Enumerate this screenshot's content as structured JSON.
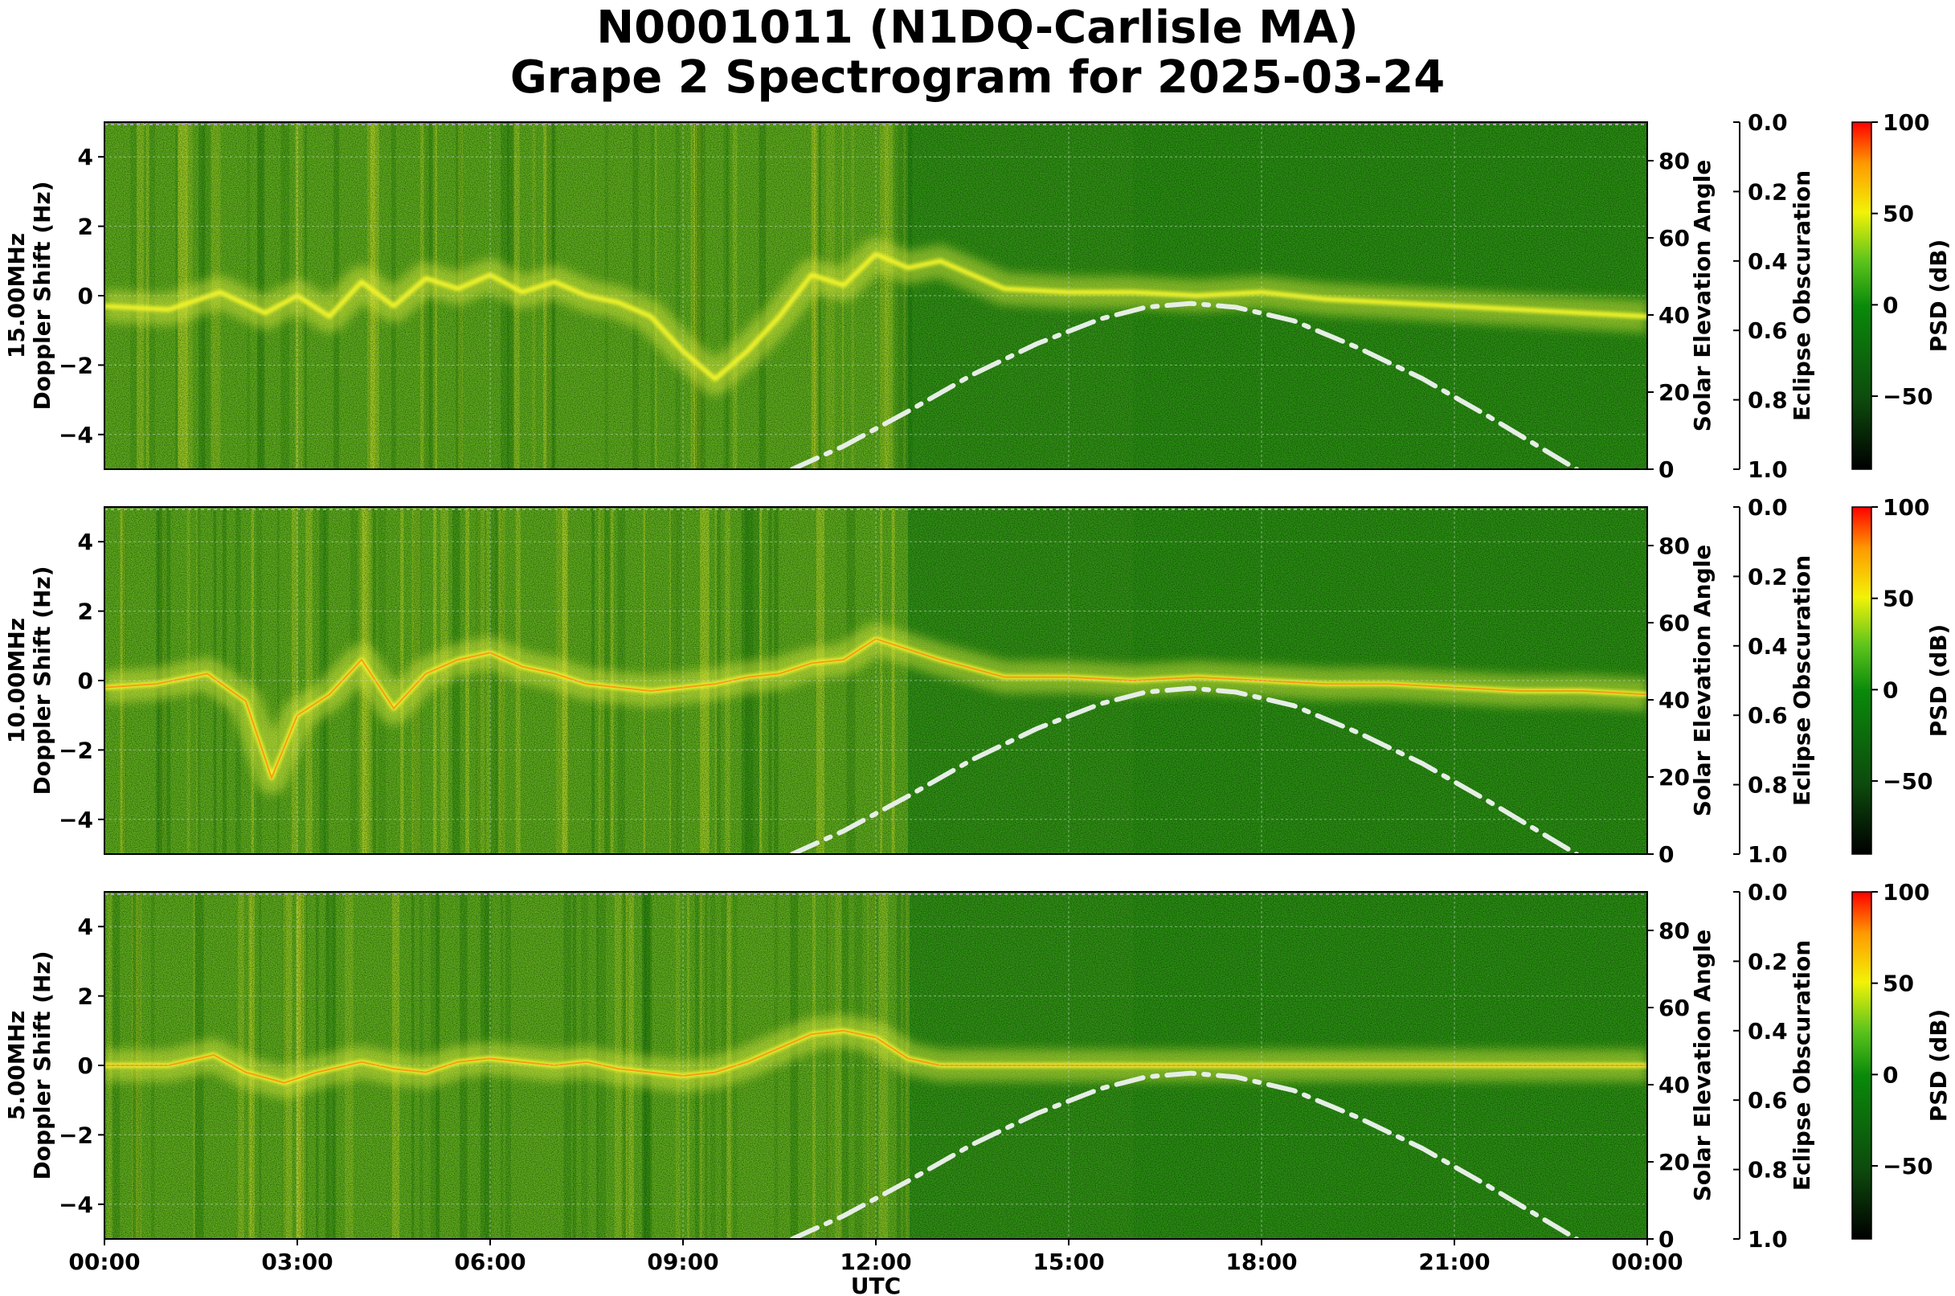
{
  "title_line1": "N0001011 (N1DQ-Carlisle MA)",
  "title_line2": "Grape 2 Spectrogram for 2025-03-24",
  "x_axis_label": "UTC",
  "x_ticks": [
    "00:00",
    "03:00",
    "06:00",
    "09:00",
    "12:00",
    "15:00",
    "18:00",
    "21:00",
    "00:00"
  ],
  "right_axis_label": "Solar Elevation Angle",
  "eclipse_axis_label": "Eclipse Obscuration",
  "colorbar_label": "PSD (dB)",
  "chart_data": [
    {
      "type": "heatmap",
      "panel_label": "15.00MHz",
      "ylabel": "Doppler Shift (Hz)",
      "ylim": [
        -5,
        5
      ],
      "y_ticks": [
        4,
        2,
        0,
        -2,
        -4
      ],
      "right_ylabel": "Solar Elevation Angle",
      "right_ylim": [
        0,
        90
      ],
      "right_ticks": [
        80,
        60,
        40,
        20,
        0
      ],
      "eclipse_ylim": [
        0.0,
        1.0
      ],
      "eclipse_ticks": [
        "0.0",
        "0.2",
        "0.4",
        "0.6",
        "0.8",
        "1.0"
      ],
      "colorbar_range": [
        -90,
        100
      ],
      "colorbar_ticks": [
        100,
        50,
        0,
        -50
      ],
      "x_range_hours": [
        0,
        24
      ],
      "solar_elevation": {
        "x": [
          10.7,
          11.5,
          12.5,
          13.5,
          14.5,
          15.5,
          16.2,
          16.9,
          17.6,
          18.5,
          19.5,
          20.5,
          21.5,
          22.5,
          22.9
        ],
        "y": [
          0,
          6,
          15,
          24.5,
          32.5,
          39,
          42,
          43,
          42,
          38.5,
          31.5,
          23.5,
          14,
          4,
          0
        ]
      },
      "doppler_trace": {
        "x": [
          0,
          1,
          1.8,
          2.5,
          3,
          3.5,
          4,
          4.5,
          5,
          5.5,
          6,
          6.5,
          7,
          7.5,
          8,
          8.5,
          9,
          9.5,
          10,
          10.5,
          11,
          11.5,
          12,
          12.5,
          13,
          14,
          15,
          16,
          17,
          18,
          19,
          20,
          21,
          22,
          23,
          24
        ],
        "y": [
          -0.3,
          -0.4,
          0.1,
          -0.5,
          0.0,
          -0.6,
          0.4,
          -0.3,
          0.5,
          0.2,
          0.6,
          0.1,
          0.4,
          0.0,
          -0.2,
          -0.6,
          -1.6,
          -2.4,
          -1.6,
          -0.6,
          0.6,
          0.3,
          1.2,
          0.8,
          1.0,
          0.2,
          0.1,
          0.1,
          0.0,
          0.1,
          -0.1,
          -0.2,
          -0.3,
          -0.4,
          -0.5,
          -0.6
        ]
      }
    },
    {
      "type": "heatmap",
      "panel_label": "10.00MHz",
      "ylabel": "Doppler Shift (Hz)",
      "ylim": [
        -5,
        5
      ],
      "y_ticks": [
        4,
        2,
        0,
        -2,
        -4
      ],
      "right_ylabel": "Solar Elevation Angle",
      "right_ylim": [
        0,
        90
      ],
      "right_ticks": [
        80,
        60,
        40,
        20,
        0
      ],
      "eclipse_ylim": [
        0.0,
        1.0
      ],
      "eclipse_ticks": [
        "0.0",
        "0.2",
        "0.4",
        "0.6",
        "0.8",
        "1.0"
      ],
      "colorbar_range": [
        -90,
        100
      ],
      "colorbar_ticks": [
        100,
        50,
        0,
        -50
      ],
      "x_range_hours": [
        0,
        24
      ],
      "solar_elevation": {
        "x": [
          10.7,
          11.5,
          12.5,
          13.5,
          14.5,
          15.5,
          16.2,
          16.9,
          17.6,
          18.5,
          19.5,
          20.5,
          21.5,
          22.5,
          22.9
        ],
        "y": [
          0,
          6,
          15,
          24.5,
          32.5,
          39,
          42,
          43,
          42,
          38.5,
          31.5,
          23.5,
          14,
          4,
          0
        ]
      },
      "doppler_trace": {
        "x": [
          0,
          0.8,
          1.6,
          2.2,
          2.6,
          3,
          3.5,
          4,
          4.5,
          5,
          5.5,
          6,
          6.5,
          7,
          7.5,
          8,
          8.5,
          9,
          9.5,
          10,
          10.5,
          11,
          11.5,
          12,
          12.5,
          13,
          14,
          15,
          16,
          17,
          18,
          19,
          20,
          21,
          22,
          23,
          24
        ],
        "y": [
          -0.2,
          -0.1,
          0.2,
          -0.6,
          -2.8,
          -1.0,
          -0.4,
          0.6,
          -0.8,
          0.2,
          0.6,
          0.8,
          0.4,
          0.2,
          -0.1,
          -0.2,
          -0.3,
          -0.2,
          -0.1,
          0.1,
          0.2,
          0.5,
          0.6,
          1.2,
          0.9,
          0.6,
          0.1,
          0.1,
          0.0,
          0.1,
          0.0,
          -0.1,
          -0.1,
          -0.2,
          -0.3,
          -0.3,
          -0.4
        ]
      }
    },
    {
      "type": "heatmap",
      "panel_label": "5.00MHz",
      "ylabel": "Doppler Shift (Hz)",
      "ylim": [
        -5,
        5
      ],
      "y_ticks": [
        4,
        2,
        0,
        -2,
        -4
      ],
      "right_ylabel": "Solar Elevation Angle",
      "right_ylim": [
        0,
        90
      ],
      "right_ticks": [
        80,
        60,
        40,
        20,
        0
      ],
      "eclipse_ylim": [
        0.0,
        1.0
      ],
      "eclipse_ticks": [
        "0.0",
        "0.2",
        "0.4",
        "0.6",
        "0.8",
        "1.0"
      ],
      "colorbar_range": [
        -90,
        100
      ],
      "colorbar_ticks": [
        100,
        50,
        0,
        -50
      ],
      "x_range_hours": [
        0,
        24
      ],
      "solar_elevation": {
        "x": [
          10.7,
          11.5,
          12.5,
          13.5,
          14.5,
          15.5,
          16.2,
          16.9,
          17.6,
          18.5,
          19.5,
          20.5,
          21.5,
          22.5,
          22.9
        ],
        "y": [
          0,
          6,
          15,
          24.5,
          32.5,
          39,
          42,
          43,
          42,
          38.5,
          31.5,
          23.5,
          14,
          4,
          0
        ]
      },
      "doppler_trace": {
        "x": [
          0,
          1,
          1.7,
          2.2,
          2.8,
          3.3,
          4,
          4.5,
          5,
          5.5,
          6,
          6.5,
          7,
          7.5,
          8,
          8.5,
          9,
          9.5,
          10,
          10.5,
          11,
          11.5,
          12,
          12.5,
          13,
          14,
          15,
          16,
          17,
          18,
          19,
          20,
          21,
          22,
          23,
          24
        ],
        "y": [
          0.0,
          0.0,
          0.3,
          -0.2,
          -0.5,
          -0.2,
          0.1,
          -0.1,
          -0.2,
          0.1,
          0.2,
          0.1,
          0.0,
          0.1,
          -0.1,
          -0.2,
          -0.3,
          -0.2,
          0.1,
          0.5,
          0.9,
          1.0,
          0.8,
          0.2,
          0.0,
          0.0,
          0.0,
          0.0,
          0.0,
          0.0,
          0.0,
          0.0,
          0.0,
          0.0,
          0.0,
          0.0
        ]
      }
    }
  ]
}
